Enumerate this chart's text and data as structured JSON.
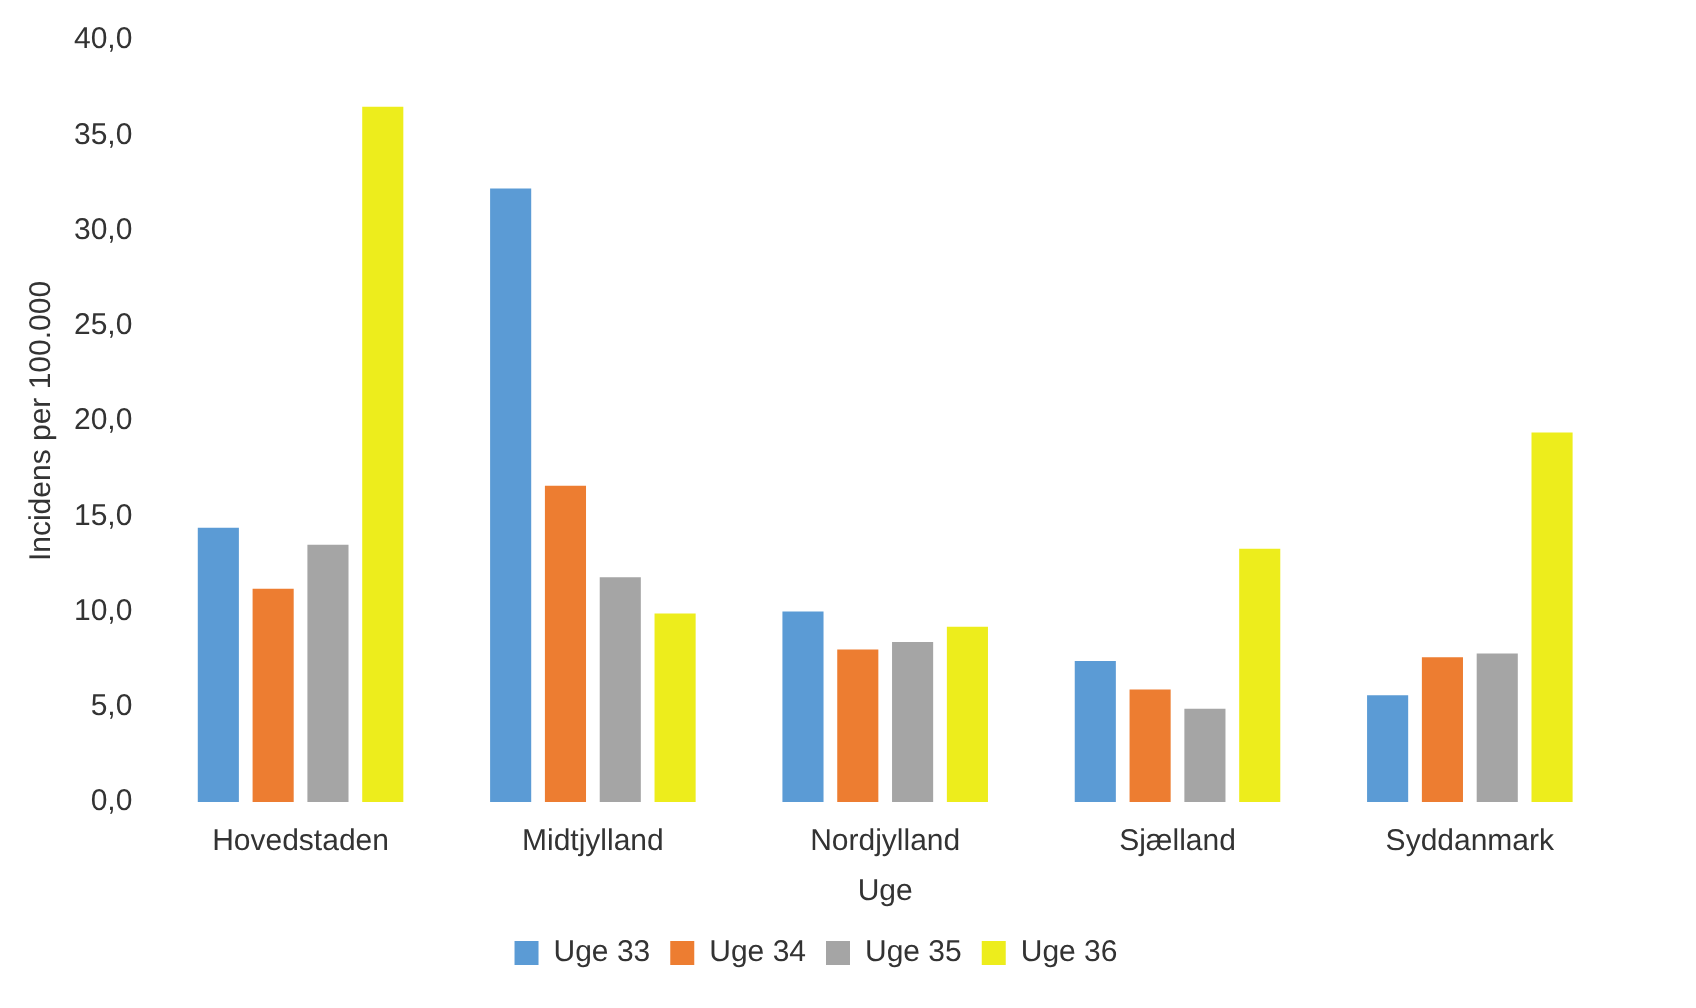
{
  "chart_data": {
    "type": "bar",
    "xlabel": "Uge",
    "ylabel": "Incidens per 100.000",
    "categories": [
      "Hovedstaden",
      "Midtjylland",
      "Nordjylland",
      "Sjælland",
      "Syddanmark"
    ],
    "series": [
      {
        "name": "Uge 33",
        "color": "#5b9bd5",
        "values": [
          14.4,
          32.2,
          10.0,
          7.4,
          5.6
        ]
      },
      {
        "name": "Uge 34",
        "color": "#ed7d31",
        "values": [
          11.2,
          16.6,
          8.0,
          5.9,
          7.6
        ]
      },
      {
        "name": "Uge 35",
        "color": "#a5a5a5",
        "values": [
          13.5,
          11.8,
          8.4,
          4.9,
          7.8
        ]
      },
      {
        "name": "Uge 36",
        "color": "#eded1c",
        "values": [
          36.5,
          9.9,
          9.2,
          13.3,
          19.4
        ]
      }
    ],
    "ylim": [
      0,
      40
    ],
    "yticks": [
      {
        "value": 0,
        "label": "0,0"
      },
      {
        "value": 5,
        "label": "5,0"
      },
      {
        "value": 10,
        "label": "10,0"
      },
      {
        "value": 15,
        "label": "15,0"
      },
      {
        "value": 20,
        "label": "20,0"
      },
      {
        "value": 25,
        "label": "25,0"
      },
      {
        "value": 30,
        "label": "30,0"
      },
      {
        "value": 35,
        "label": "35,0"
      },
      {
        "value": 40,
        "label": "40,0"
      }
    ],
    "grid": false,
    "legend": "bottom"
  }
}
